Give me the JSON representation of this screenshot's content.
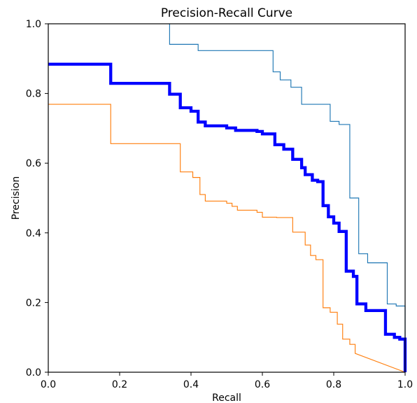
{
  "chart_data": {
    "type": "line",
    "title": "Precision-Recall Curve",
    "xlabel": "Recall",
    "ylabel": "Precision",
    "xlim": [
      0.0,
      1.0
    ],
    "ylim": [
      0.0,
      1.0
    ],
    "xticks": [
      "0.0",
      "0.2",
      "0.4",
      "0.6",
      "0.8",
      "1.0"
    ],
    "yticks": [
      "0.0",
      "0.2",
      "0.4",
      "0.6",
      "0.8",
      "1.0"
    ],
    "grid": false,
    "legend": "none",
    "series": [
      {
        "color": "#1f77b4",
        "line_width": "thin",
        "step": true,
        "points": [
          [
            0.34,
            1.0
          ],
          [
            0.34,
            0.941
          ],
          [
            0.42,
            0.941
          ],
          [
            0.42,
            0.923
          ],
          [
            0.63,
            0.923
          ],
          [
            0.63,
            0.862
          ],
          [
            0.65,
            0.862
          ],
          [
            0.65,
            0.839
          ],
          [
            0.68,
            0.839
          ],
          [
            0.68,
            0.818
          ],
          [
            0.71,
            0.818
          ],
          [
            0.71,
            0.769
          ],
          [
            0.79,
            0.769
          ],
          [
            0.79,
            0.72
          ],
          [
            0.815,
            0.72
          ],
          [
            0.815,
            0.711
          ],
          [
            0.845,
            0.711
          ],
          [
            0.845,
            0.5
          ],
          [
            0.87,
            0.5
          ],
          [
            0.87,
            0.34
          ],
          [
            0.895,
            0.34
          ],
          [
            0.895,
            0.314
          ],
          [
            0.95,
            0.314
          ],
          [
            0.95,
            0.196
          ],
          [
            0.975,
            0.196
          ],
          [
            0.975,
            0.19
          ],
          [
            1.0,
            0.19
          ],
          [
            1.0,
            0.0
          ]
        ]
      },
      {
        "color": "#ff7f0e",
        "line_width": "thin",
        "step": true,
        "points": [
          [
            0.0,
            0.769
          ],
          [
            0.175,
            0.769
          ],
          [
            0.175,
            0.656
          ],
          [
            0.37,
            0.656
          ],
          [
            0.37,
            0.575
          ],
          [
            0.405,
            0.575
          ],
          [
            0.405,
            0.559
          ],
          [
            0.425,
            0.559
          ],
          [
            0.425,
            0.51
          ],
          [
            0.44,
            0.51
          ],
          [
            0.44,
            0.491
          ],
          [
            0.5,
            0.491
          ],
          [
            0.5,
            0.485
          ],
          [
            0.515,
            0.485
          ],
          [
            0.515,
            0.476
          ],
          [
            0.53,
            0.476
          ],
          [
            0.53,
            0.465
          ],
          [
            0.585,
            0.465
          ],
          [
            0.585,
            0.459
          ],
          [
            0.6,
            0.459
          ],
          [
            0.6,
            0.445
          ],
          [
            0.64,
            0.445
          ],
          [
            0.64,
            0.444
          ],
          [
            0.685,
            0.444
          ],
          [
            0.685,
            0.402
          ],
          [
            0.72,
            0.402
          ],
          [
            0.72,
            0.365
          ],
          [
            0.735,
            0.365
          ],
          [
            0.735,
            0.335
          ],
          [
            0.75,
            0.335
          ],
          [
            0.75,
            0.323
          ],
          [
            0.77,
            0.323
          ],
          [
            0.77,
            0.185
          ],
          [
            0.79,
            0.185
          ],
          [
            0.79,
            0.172
          ],
          [
            0.81,
            0.172
          ],
          [
            0.81,
            0.138
          ],
          [
            0.825,
            0.138
          ],
          [
            0.825,
            0.095
          ],
          [
            0.845,
            0.095
          ],
          [
            0.845,
            0.08
          ],
          [
            0.86,
            0.08
          ],
          [
            0.86,
            0.054
          ],
          [
            1.0,
            0.0
          ]
        ]
      },
      {
        "color": "#0000ff",
        "line_width": "thick",
        "step": true,
        "points": [
          [
            0.0,
            0.884
          ],
          [
            0.175,
            0.884
          ],
          [
            0.175,
            0.829
          ],
          [
            0.34,
            0.829
          ],
          [
            0.34,
            0.798
          ],
          [
            0.37,
            0.798
          ],
          [
            0.37,
            0.759
          ],
          [
            0.4,
            0.759
          ],
          [
            0.4,
            0.749
          ],
          [
            0.42,
            0.749
          ],
          [
            0.42,
            0.718
          ],
          [
            0.44,
            0.718
          ],
          [
            0.44,
            0.707
          ],
          [
            0.5,
            0.707
          ],
          [
            0.5,
            0.701
          ],
          [
            0.525,
            0.701
          ],
          [
            0.525,
            0.694
          ],
          [
            0.585,
            0.694
          ],
          [
            0.585,
            0.691
          ],
          [
            0.6,
            0.691
          ],
          [
            0.6,
            0.684
          ],
          [
            0.635,
            0.684
          ],
          [
            0.635,
            0.653
          ],
          [
            0.66,
            0.653
          ],
          [
            0.66,
            0.64
          ],
          [
            0.685,
            0.64
          ],
          [
            0.685,
            0.611
          ],
          [
            0.71,
            0.611
          ],
          [
            0.71,
            0.587
          ],
          [
            0.72,
            0.587
          ],
          [
            0.72,
            0.567
          ],
          [
            0.74,
            0.567
          ],
          [
            0.74,
            0.551
          ],
          [
            0.755,
            0.551
          ],
          [
            0.755,
            0.547
          ],
          [
            0.77,
            0.547
          ],
          [
            0.77,
            0.478
          ],
          [
            0.785,
            0.478
          ],
          [
            0.785,
            0.446
          ],
          [
            0.8,
            0.446
          ],
          [
            0.8,
            0.428
          ],
          [
            0.815,
            0.428
          ],
          [
            0.815,
            0.404
          ],
          [
            0.835,
            0.404
          ],
          [
            0.835,
            0.29
          ],
          [
            0.855,
            0.29
          ],
          [
            0.855,
            0.275
          ],
          [
            0.865,
            0.275
          ],
          [
            0.865,
            0.196
          ],
          [
            0.89,
            0.196
          ],
          [
            0.89,
            0.177
          ],
          [
            0.945,
            0.177
          ],
          [
            0.945,
            0.109
          ],
          [
            0.97,
            0.109
          ],
          [
            0.97,
            0.1
          ],
          [
            0.985,
            0.1
          ],
          [
            0.985,
            0.095
          ],
          [
            1.0,
            0.095
          ],
          [
            1.0,
            0.0
          ]
        ]
      }
    ]
  }
}
